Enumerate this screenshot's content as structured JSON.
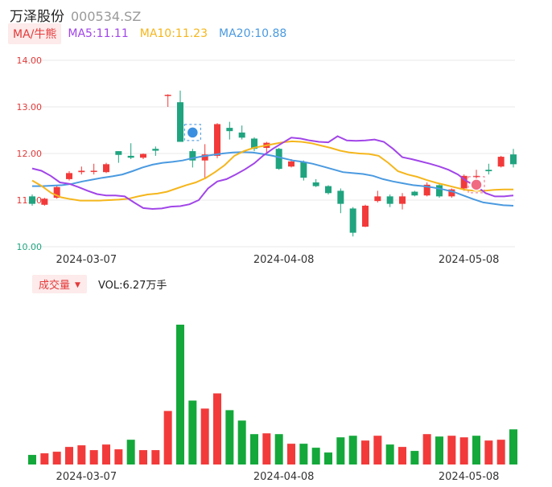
{
  "header": {
    "name": "万泽股份",
    "code": "000534.SZ"
  },
  "legend": {
    "ma_label": "MA/牛熊",
    "ma5": "MA5:11.11",
    "ma10": "MA10:11.23",
    "ma20": "MA20:10.88"
  },
  "volume": {
    "label": "成交量",
    "value": "VOL:6.27万手"
  },
  "colors": {
    "up": "#f23a3a",
    "down": "#1fa47f",
    "ma5": "#a145e8",
    "ma10": "#f5b61c",
    "ma20": "#4a9ae0",
    "grid": "#e8e8e8",
    "vol_up": "#f23a3a",
    "vol_down": "#14a83b"
  },
  "chart_data": [
    {
      "type": "candlestick",
      "y_ticks": [
        "14.00",
        "13.00",
        "12.00",
        "11.00",
        "10.00"
      ],
      "ylim": [
        10.0,
        14.0
      ],
      "x_tick_labels": [
        "2024-03-07",
        "2024-04-08",
        "2024-05-08"
      ],
      "grid": true,
      "candles": [
        {
          "o": 11.08,
          "c": 10.92,
          "h": 11.12,
          "l": 10.88,
          "dir": "down"
        },
        {
          "o": 10.9,
          "c": 11.03,
          "h": 11.05,
          "l": 10.88,
          "dir": "up"
        },
        {
          "o": 11.05,
          "c": 11.28,
          "h": 11.32,
          "l": 11.03,
          "dir": "up"
        },
        {
          "o": 11.45,
          "c": 11.58,
          "h": 11.62,
          "l": 11.42,
          "dir": "up"
        },
        {
          "o": 11.6,
          "c": 11.63,
          "h": 11.72,
          "l": 11.55,
          "dir": "up"
        },
        {
          "o": 11.61,
          "c": 11.63,
          "h": 11.78,
          "l": 11.55,
          "dir": "up"
        },
        {
          "o": 11.6,
          "c": 11.77,
          "h": 11.8,
          "l": 11.58,
          "dir": "up"
        },
        {
          "o": 12.05,
          "c": 11.97,
          "h": 12.05,
          "l": 11.8,
          "dir": "down"
        },
        {
          "o": 11.95,
          "c": 11.91,
          "h": 12.22,
          "l": 11.88,
          "dir": "down"
        },
        {
          "o": 11.91,
          "c": 11.99,
          "h": 12.0,
          "l": 11.88,
          "dir": "up"
        },
        {
          "o": 12.1,
          "c": 12.06,
          "h": 12.15,
          "l": 11.95,
          "dir": "down"
        },
        {
          "o": 13.25,
          "c": 13.26,
          "h": 13.27,
          "l": 13.0,
          "dir": "up"
        },
        {
          "o": 13.1,
          "c": 12.25,
          "h": 13.35,
          "l": 12.25,
          "dir": "down"
        },
        {
          "o": 12.05,
          "c": 11.85,
          "h": 12.1,
          "l": 11.7,
          "dir": "down"
        },
        {
          "o": 11.85,
          "c": 11.98,
          "h": 12.2,
          "l": 11.45,
          "dir": "up"
        },
        {
          "o": 11.95,
          "c": 12.63,
          "h": 12.65,
          "l": 11.9,
          "dir": "up"
        },
        {
          "o": 12.55,
          "c": 12.48,
          "h": 12.68,
          "l": 12.3,
          "dir": "down"
        },
        {
          "o": 12.45,
          "c": 12.34,
          "h": 12.6,
          "l": 12.3,
          "dir": "down"
        },
        {
          "o": 12.32,
          "c": 12.1,
          "h": 12.35,
          "l": 12.05,
          "dir": "down"
        },
        {
          "o": 12.12,
          "c": 12.23,
          "h": 12.25,
          "l": 12.0,
          "dir": "up"
        },
        {
          "o": 12.1,
          "c": 11.67,
          "h": 12.12,
          "l": 11.65,
          "dir": "down"
        },
        {
          "o": 11.72,
          "c": 11.83,
          "h": 11.88,
          "l": 11.7,
          "dir": "up"
        },
        {
          "o": 11.82,
          "c": 11.48,
          "h": 11.85,
          "l": 11.42,
          "dir": "down"
        },
        {
          "o": 11.38,
          "c": 11.3,
          "h": 11.45,
          "l": 11.28,
          "dir": "down"
        },
        {
          "o": 11.3,
          "c": 11.15,
          "h": 11.32,
          "l": 11.12,
          "dir": "down"
        },
        {
          "o": 11.2,
          "c": 10.92,
          "h": 11.25,
          "l": 10.72,
          "dir": "down"
        },
        {
          "o": 10.82,
          "c": 10.3,
          "h": 10.85,
          "l": 10.22,
          "dir": "down"
        },
        {
          "o": 10.43,
          "c": 10.88,
          "h": 10.9,
          "l": 10.42,
          "dir": "up"
        },
        {
          "o": 10.98,
          "c": 11.08,
          "h": 11.2,
          "l": 10.95,
          "dir": "up"
        },
        {
          "o": 11.08,
          "c": 10.92,
          "h": 11.12,
          "l": 10.85,
          "dir": "down"
        },
        {
          "o": 10.92,
          "c": 11.08,
          "h": 11.15,
          "l": 10.8,
          "dir": "up"
        },
        {
          "o": 11.18,
          "c": 11.1,
          "h": 11.2,
          "l": 11.08,
          "dir": "down"
        },
        {
          "o": 11.1,
          "c": 11.33,
          "h": 11.38,
          "l": 11.08,
          "dir": "up"
        },
        {
          "o": 11.32,
          "c": 11.08,
          "h": 11.35,
          "l": 11.05,
          "dir": "down"
        },
        {
          "o": 11.08,
          "c": 11.23,
          "h": 11.25,
          "l": 11.05,
          "dir": "up"
        },
        {
          "o": 11.25,
          "c": 11.52,
          "h": 11.55,
          "l": 11.2,
          "dir": "up"
        },
        {
          "o": 11.5,
          "c": 11.52,
          "h": 11.65,
          "l": 11.45,
          "dir": "up"
        },
        {
          "o": 11.65,
          "c": 11.62,
          "h": 11.78,
          "l": 11.55,
          "dir": "down"
        },
        {
          "o": 11.72,
          "c": 11.93,
          "h": 11.95,
          "l": 11.7,
          "dir": "up"
        },
        {
          "o": 11.98,
          "c": 11.77,
          "h": 12.1,
          "l": 11.7,
          "dir": "down"
        }
      ],
      "ma5": [
        11.68,
        11.63,
        11.52,
        11.38,
        11.35,
        11.28,
        11.2,
        11.13,
        11.1,
        11.1,
        11.08,
        10.95,
        10.83,
        10.81,
        10.82,
        10.86,
        10.87,
        10.91,
        11.0,
        11.25,
        11.4,
        11.45,
        11.55,
        11.66,
        11.79,
        11.96,
        12.1,
        12.22,
        12.34,
        12.32,
        12.28,
        12.25,
        12.24,
        12.37,
        12.28,
        12.27,
        12.28,
        12.3,
        12.25,
        12.1,
        11.92,
        11.88,
        11.83,
        11.78,
        11.72,
        11.65,
        11.55,
        11.4,
        11.3,
        11.15,
        11.08,
        11.08,
        11.1
      ],
      "ma10": [
        11.42,
        11.3,
        11.15,
        11.06,
        11.02,
        10.99,
        10.99,
        10.99,
        11.0,
        11.01,
        11.03,
        11.08,
        11.12,
        11.14,
        11.18,
        11.25,
        11.32,
        11.38,
        11.47,
        11.6,
        11.75,
        11.95,
        12.05,
        12.12,
        12.16,
        12.2,
        12.24,
        12.26,
        12.25,
        12.22,
        12.17,
        12.12,
        12.06,
        12.02,
        12.0,
        11.99,
        11.95,
        11.8,
        11.62,
        11.55,
        11.5,
        11.43,
        11.37,
        11.32,
        11.27,
        11.22,
        11.2,
        11.2,
        11.22,
        11.23,
        11.23
      ],
      "ma20": [
        11.3,
        11.3,
        11.31,
        11.32,
        11.35,
        11.4,
        11.44,
        11.48,
        11.51,
        11.55,
        11.62,
        11.7,
        11.76,
        11.8,
        11.82,
        11.85,
        11.9,
        11.94,
        11.97,
        12.0,
        12.02,
        12.03,
        12.02,
        11.99,
        11.95,
        11.9,
        11.85,
        11.82,
        11.78,
        11.72,
        11.66,
        11.6,
        11.58,
        11.56,
        11.52,
        11.45,
        11.4,
        11.36,
        11.32,
        11.3,
        11.27,
        11.23,
        11.18,
        11.1,
        11.02,
        10.95,
        10.92,
        10.89,
        10.88
      ]
    },
    {
      "type": "bar",
      "title": "成交量",
      "x_tick_labels": [
        "2024-03-07",
        "2024-04-08",
        "2024-05-08"
      ],
      "values": [
        12,
        14,
        16,
        22,
        24,
        18,
        25,
        19,
        31,
        18,
        18,
        67,
        175,
        80,
        70,
        89,
        68,
        55,
        38,
        39,
        38,
        26,
        26,
        21,
        15,
        34,
        36,
        30,
        36,
        25,
        22,
        17,
        38,
        35,
        36,
        34,
        36,
        30,
        31,
        44
      ],
      "dirs": [
        "down",
        "up",
        "up",
        "up",
        "up",
        "up",
        "up",
        "up",
        "down",
        "up",
        "up",
        "up",
        "down",
        "down",
        "up",
        "up",
        "down",
        "down",
        "down",
        "up",
        "down",
        "up",
        "down",
        "down",
        "down",
        "down",
        "down",
        "up",
        "up",
        "down",
        "up",
        "down",
        "up",
        "down",
        "up",
        "up",
        "down",
        "up",
        "up",
        "down"
      ]
    }
  ]
}
